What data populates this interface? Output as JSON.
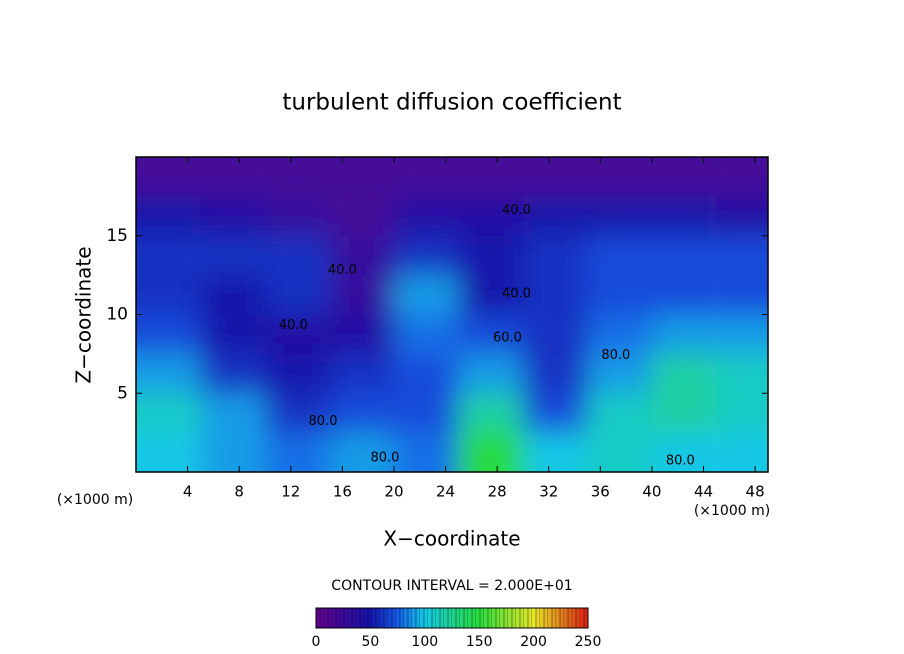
{
  "chart_data": {
    "type": "contour",
    "title": "turbulent diffusion coefficient",
    "x_label": "X−coordinate",
    "y_label": "Z−coordinate",
    "x_unit": "(×1000 m)",
    "xlim": [
      0,
      49
    ],
    "ylim": [
      0,
      20
    ],
    "xticks": [
      4,
      8,
      12,
      16,
      20,
      24,
      28,
      32,
      36,
      40,
      44,
      48
    ],
    "yticks": [
      5,
      10,
      15
    ],
    "x": [
      2.5,
      7.5,
      12.5,
      17.5,
      22.5,
      27.5,
      32.5,
      37.5,
      42.5,
      47.5
    ],
    "y": [
      1.25,
      3.75,
      6.25,
      8.75,
      11.25,
      13.75,
      16.25,
      18.75
    ],
    "z": [
      [
        100,
        90,
        80,
        90,
        80,
        150,
        100,
        110,
        100,
        100
      ],
      [
        110,
        90,
        60,
        70,
        70,
        120,
        70,
        110,
        120,
        110
      ],
      [
        90,
        60,
        50,
        60,
        70,
        90,
        60,
        90,
        120,
        110
      ],
      [
        70,
        50,
        40,
        40,
        80,
        70,
        60,
        80,
        90,
        90
      ],
      [
        60,
        50,
        60,
        30,
        90,
        50,
        60,
        70,
        70,
        70
      ],
      [
        60,
        60,
        60,
        30,
        60,
        50,
        60,
        70,
        70,
        70
      ],
      [
        50,
        40,
        30,
        20,
        40,
        40,
        50,
        50,
        50,
        40
      ],
      [
        20,
        20,
        20,
        20,
        20,
        20,
        20,
        20,
        20,
        20
      ]
    ],
    "annotations": [
      {
        "text": "40.0",
        "x": 29.5,
        "y": 16.6
      },
      {
        "text": "40.0",
        "x": 29.5,
        "y": 11.3
      },
      {
        "text": "40.0",
        "x": 16,
        "y": 12.8
      },
      {
        "text": "40.0",
        "x": 12.2,
        "y": 9.3
      },
      {
        "text": "60.0",
        "x": 28.8,
        "y": 8.5
      },
      {
        "text": "80.0",
        "x": 37.2,
        "y": 7.4
      },
      {
        "text": "80.0",
        "x": 42.2,
        "y": 0.7
      },
      {
        "text": "80.0",
        "x": 19.3,
        "y": 0.9
      },
      {
        "text": "80.0",
        "x": 14.5,
        "y": 3.2
      }
    ],
    "contour_interval_label": "CONTOUR INTERVAL = 2.000E+01",
    "colorbar": {
      "lim": [
        0,
        250
      ],
      "ticks": [
        0,
        50,
        100,
        150,
        200,
        250
      ]
    }
  }
}
